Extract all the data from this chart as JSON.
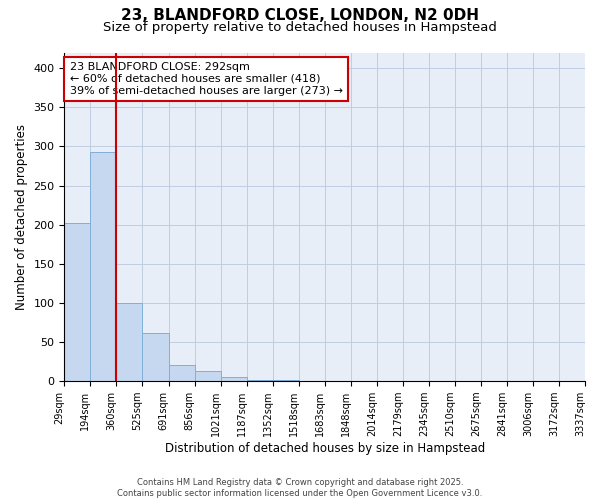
{
  "title_line1": "23, BLANDFORD CLOSE, LONDON, N2 0DH",
  "title_line2": "Size of property relative to detached houses in Hampstead",
  "xlabel": "Distribution of detached houses by size in Hampstead",
  "ylabel": "Number of detached properties",
  "bar_color": "#c5d8f0",
  "bar_edge_color": "#7fb0d8",
  "background_color": "#e8eef8",
  "grid_color": "#c0cce0",
  "bin_labels": [
    "29sqm",
    "194sqm",
    "360sqm",
    "525sqm",
    "691sqm",
    "856sqm",
    "1021sqm",
    "1187sqm",
    "1352sqm",
    "1518sqm",
    "1683sqm",
    "1848sqm",
    "2014sqm",
    "2179sqm",
    "2345sqm",
    "2510sqm",
    "2675sqm",
    "2841sqm",
    "3006sqm",
    "3172sqm",
    "3337sqm"
  ],
  "values": [
    202,
    293,
    100,
    61,
    20,
    13,
    5,
    2,
    1,
    0,
    0,
    0,
    0,
    0,
    0,
    0,
    0,
    0,
    0,
    0
  ],
  "ylim": [
    0,
    420
  ],
  "yticks": [
    0,
    50,
    100,
    150,
    200,
    250,
    300,
    350,
    400
  ],
  "vline_bin": 2,
  "vline_color": "#cc0000",
  "annotation_text": "23 BLANDFORD CLOSE: 292sqm\n← 60% of detached houses are smaller (418)\n39% of semi-detached houses are larger (273) →",
  "annotation_box_color": "#cc0000",
  "annotation_fontsize": 8,
  "footer_text": "Contains HM Land Registry data © Crown copyright and database right 2025.\nContains public sector information licensed under the Open Government Licence v3.0.",
  "title_fontsize": 11,
  "subtitle_fontsize": 9.5,
  "xlabel_fontsize": 8.5,
  "ylabel_fontsize": 8.5,
  "tick_fontsize": 7
}
